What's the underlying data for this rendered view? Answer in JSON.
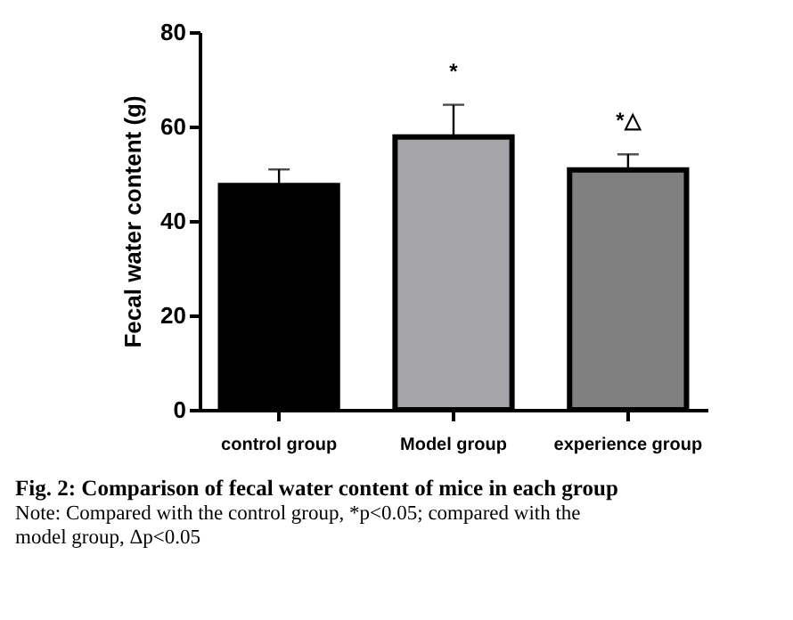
{
  "chart_data": {
    "type": "bar",
    "title": "Fig. 2: Comparison of fecal water content of mice in each group",
    "ylabel": "Fecal water content (g)",
    "categories": [
      "control group",
      "Model group",
      "experience group"
    ],
    "values": [
      47.5,
      57.8,
      50.8
    ],
    "colors": [
      "#000000",
      "#a5a5a9",
      "#808080"
    ],
    "errors": [
      [
        47.5,
        50.9
      ],
      [
        57.8,
        64.6
      ],
      [
        50.8,
        54.1
      ]
    ],
    "ylim": [
      0,
      80
    ],
    "yticks": [
      0,
      20,
      40,
      60,
      80
    ],
    "grid": false,
    "annotations": [
      "*",
      "*△",
      "Note: Compared with the control group, *p<0.05; compared with the model group, Δp<0.05"
    ]
  }
}
